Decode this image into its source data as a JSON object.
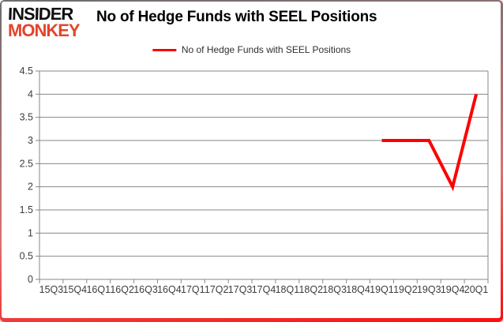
{
  "logo": {
    "line1": "INSIDER",
    "line2": "MONKEY"
  },
  "header": {
    "title": "No of Hedge Funds with SEEL Positions"
  },
  "legend": {
    "label": "No of Hedge Funds with SEEL Positions",
    "line_color": "#ff0000"
  },
  "chart_data": {
    "type": "line",
    "title": "No of Hedge Funds with SEEL Positions",
    "categories": [
      "15Q3",
      "15Q4",
      "16Q1",
      "16Q2",
      "16Q3",
      "16Q4",
      "17Q1",
      "17Q2",
      "17Q3",
      "17Q4",
      "18Q1",
      "18Q2",
      "18Q3",
      "18Q4",
      "19Q1",
      "19Q2",
      "19Q3",
      "19Q4",
      "20Q1"
    ],
    "series": [
      {
        "name": "No of Hedge Funds with SEEL Positions",
        "color": "#ff0000",
        "values": [
          null,
          null,
          null,
          null,
          null,
          null,
          null,
          null,
          null,
          null,
          null,
          null,
          null,
          null,
          3,
          3,
          3,
          2,
          4
        ]
      }
    ],
    "xlabel": "",
    "ylabel": "",
    "ylim": [
      0,
      4.5
    ],
    "ytick_step": 0.5,
    "grid": true,
    "legend_position": "top",
    "gridline_color": "#878787",
    "axis_label_color": "#3d3d3d"
  }
}
